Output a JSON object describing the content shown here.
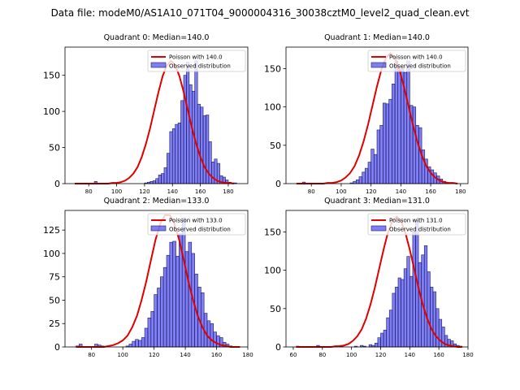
{
  "suptitle": "Data file: modeM0/AS1A10_071T04_9000004316_30038cztM0_level2_quad_clean.evt",
  "chart_data": [
    {
      "type": "bar",
      "title": "Quadrant 0: Median=140.0",
      "median": 140.0,
      "legend": {
        "poisson_label": "Poisson with 140.0",
        "observed_label": "Observed distribution",
        "position": "top-right"
      },
      "xlim": [
        63,
        194
      ],
      "ylim": [
        0,
        189
      ],
      "xticks": [
        80,
        100,
        120,
        140,
        160,
        180
      ],
      "yticks": [
        0,
        50,
        100,
        150
      ],
      "bins": {
        "start": 64,
        "width": 2
      },
      "values": [
        0,
        0,
        0,
        0,
        0,
        0,
        0,
        0,
        0,
        0,
        3,
        0,
        0,
        0,
        0,
        0,
        0,
        0,
        0,
        0,
        0,
        0,
        0,
        0,
        0,
        0,
        0,
        0,
        1,
        2,
        3,
        4,
        7,
        12,
        14,
        22,
        42,
        72,
        76,
        82,
        84,
        115,
        150,
        168,
        137,
        128,
        170,
        110,
        106,
        94,
        95,
        58,
        30,
        34,
        28,
        11,
        9,
        5,
        2,
        1,
        1,
        0,
        0,
        0,
        0
      ],
      "poisson_y": [
        0,
        0,
        0,
        0,
        0,
        0,
        0,
        0,
        0,
        1,
        1,
        2,
        4,
        8,
        14,
        23,
        37,
        55,
        77,
        102,
        127,
        149,
        164,
        170,
        164,
        149,
        127,
        102,
        77,
        55,
        37,
        23,
        14,
        8,
        4,
        2,
        1,
        1,
        0
      ],
      "poisson_x_start": 70,
      "poisson_x_step": 3
    },
    {
      "type": "bar",
      "title": "Quadrant 1: Median=140.0",
      "median": 140.0,
      "legend": {
        "poisson_label": "Poisson with 140.0",
        "observed_label": "Observed distribution",
        "position": "top-right"
      },
      "xlim": [
        63,
        185
      ],
      "ylim": [
        0,
        178
      ],
      "xticks": [
        80,
        100,
        120,
        140,
        160,
        180
      ],
      "yticks": [
        0,
        50,
        100,
        150
      ],
      "bins": {
        "start": 68,
        "width": 2
      },
      "values": [
        0,
        0,
        0,
        2,
        0,
        0,
        0,
        0,
        0,
        0,
        0,
        0,
        0,
        0,
        0,
        0,
        0,
        0,
        0,
        1,
        3,
        5,
        9,
        15,
        20,
        28,
        45,
        38,
        70,
        76,
        105,
        104,
        110,
        130,
        160,
        148,
        152,
        145,
        160,
        102,
        100,
        76,
        73,
        44,
        32,
        22,
        18,
        14,
        10,
        6,
        3,
        1,
        0,
        0,
        0,
        0,
        0
      ],
      "poisson_y": [
        0,
        0,
        0,
        0,
        0,
        0,
        0,
        1,
        1,
        2,
        4,
        8,
        14,
        23,
        37,
        55,
        77,
        102,
        127,
        149,
        164,
        170,
        164,
        149,
        127,
        102,
        77,
        55,
        37,
        23,
        14,
        8,
        4,
        2,
        1,
        1,
        0
      ],
      "poisson_x_start": 70,
      "poisson_x_step": 3
    },
    {
      "type": "bar",
      "title": "Quadrant 2: Median=133.0",
      "median": 133.0,
      "legend": {
        "poisson_label": "Poisson with 133.0",
        "observed_label": "Observed distribution",
        "position": "top-right"
      },
      "xlim": [
        63,
        180
      ],
      "ylim": [
        0,
        146
      ],
      "xticks": [
        80,
        100,
        120,
        140,
        160,
        180
      ],
      "yticks": [
        0,
        25,
        50,
        75,
        100,
        125
      ],
      "bins": {
        "start": 70,
        "width": 2
      },
      "values": [
        1,
        3,
        0,
        0,
        0,
        0,
        3,
        2,
        1,
        0,
        0,
        0,
        0,
        0,
        0,
        0,
        1,
        3,
        6,
        8,
        7,
        10,
        20,
        31,
        38,
        56,
        63,
        75,
        85,
        98,
        112,
        113,
        97,
        121,
        138,
        102,
        112,
        100,
        78,
        64,
        58,
        36,
        28,
        25,
        16,
        12,
        10,
        5,
        3,
        1,
        0,
        0,
        0,
        0
      ],
      "poisson_y": [
        0,
        0,
        0,
        0,
        0,
        0,
        0,
        1,
        2,
        4,
        7,
        12,
        21,
        33,
        50,
        70,
        93,
        115,
        132,
        141,
        141,
        132,
        115,
        93,
        70,
        50,
        33,
        21,
        12,
        7,
        4,
        2,
        1,
        0,
        0,
        0
      ],
      "poisson_x_start": 70,
      "poisson_x_step": 3
    },
    {
      "type": "bar",
      "title": "Quadrant 3: Median=131.0",
      "median": 131.0,
      "legend": {
        "poisson_label": "Poisson with 131.0",
        "observed_label": "Observed distribution",
        "position": "top-right"
      },
      "xlim": [
        55,
        180
      ],
      "ylim": [
        0,
        178
      ],
      "xticks": [
        60,
        80,
        100,
        120,
        140,
        160,
        180
      ],
      "yticks": [
        0,
        50,
        100,
        150
      ],
      "bins": {
        "start": 60,
        "width": 2
      },
      "values": [
        0,
        1,
        0,
        0,
        0,
        0,
        0,
        0,
        2,
        0,
        0,
        0,
        0,
        0,
        1,
        0,
        2,
        0,
        0,
        0,
        0,
        1,
        0,
        2,
        1,
        0,
        3,
        2,
        5,
        12,
        18,
        22,
        38,
        48,
        70,
        78,
        90,
        88,
        102,
        118,
        92,
        150,
        165,
        110,
        120,
        132,
        98,
        78,
        72,
        50,
        36,
        26,
        15,
        10,
        8,
        4,
        2,
        1,
        0,
        0,
        0,
        0
      ],
      "poisson_y": [
        0,
        0,
        0,
        0,
        0,
        0,
        0,
        0,
        0,
        1,
        1,
        2,
        4,
        8,
        14,
        23,
        37,
        55,
        77,
        102,
        127,
        149,
        164,
        170,
        164,
        149,
        127,
        102,
        77,
        55,
        37,
        23,
        14,
        8,
        4,
        2,
        1,
        0,
        0
      ],
      "poisson_x_start": 62,
      "poisson_x_step": 3
    }
  ]
}
